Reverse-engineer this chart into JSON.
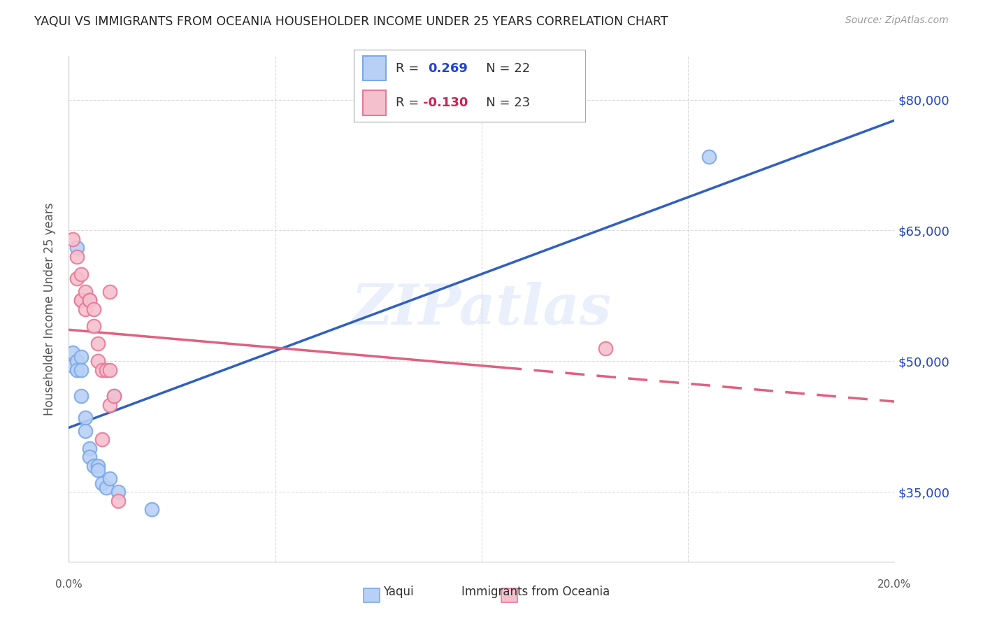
{
  "title": "YAQUI VS IMMIGRANTS FROM OCEANIA HOUSEHOLDER INCOME UNDER 25 YEARS CORRELATION CHART",
  "source": "Source: ZipAtlas.com",
  "ylabel": "Householder Income Under 25 years",
  "xlim": [
    0.0,
    0.2
  ],
  "ylim": [
    27000,
    85000
  ],
  "yticks": [
    35000,
    50000,
    65000,
    80000
  ],
  "xticks": [
    0.0,
    0.05,
    0.1,
    0.15,
    0.2
  ],
  "ytick_labels": [
    "$35,000",
    "$50,000",
    "$65,000",
    "$80,000"
  ],
  "blue_color": "#7baae8",
  "blue_fill": "#b8d0f5",
  "pink_color": "#e87898",
  "pink_fill": "#f5c0ce",
  "blue_line_color": "#3060c0",
  "pink_line_color": "#e06080",
  "watermark": "ZIPatlas",
  "blue_r": "0.269",
  "blue_n": "22",
  "pink_r": "-0.130",
  "pink_n": "23",
  "background_color": "#ffffff",
  "grid_color": "#cccccc",
  "yaqui_x": [
    0.001,
    0.001,
    0.002,
    0.002,
    0.002,
    0.003,
    0.003,
    0.003,
    0.004,
    0.004,
    0.005,
    0.005,
    0.006,
    0.007,
    0.007,
    0.008,
    0.009,
    0.01,
    0.011,
    0.012,
    0.02,
    0.155
  ],
  "yaqui_y": [
    51000,
    49500,
    63000,
    50000,
    49000,
    50500,
    49000,
    46000,
    43500,
    42000,
    40000,
    39000,
    38000,
    38000,
    37500,
    36000,
    35500,
    36500,
    46000,
    35000,
    33000,
    73500
  ],
  "oceania_x": [
    0.001,
    0.002,
    0.002,
    0.003,
    0.003,
    0.003,
    0.004,
    0.004,
    0.005,
    0.005,
    0.006,
    0.006,
    0.007,
    0.007,
    0.008,
    0.008,
    0.009,
    0.01,
    0.01,
    0.01,
    0.011,
    0.012,
    0.13
  ],
  "oceania_y": [
    64000,
    62000,
    59500,
    60000,
    57000,
    57000,
    58000,
    56000,
    57000,
    57000,
    56000,
    54000,
    52000,
    50000,
    49000,
    41000,
    49000,
    45000,
    49000,
    58000,
    46000,
    34000,
    51500
  ]
}
